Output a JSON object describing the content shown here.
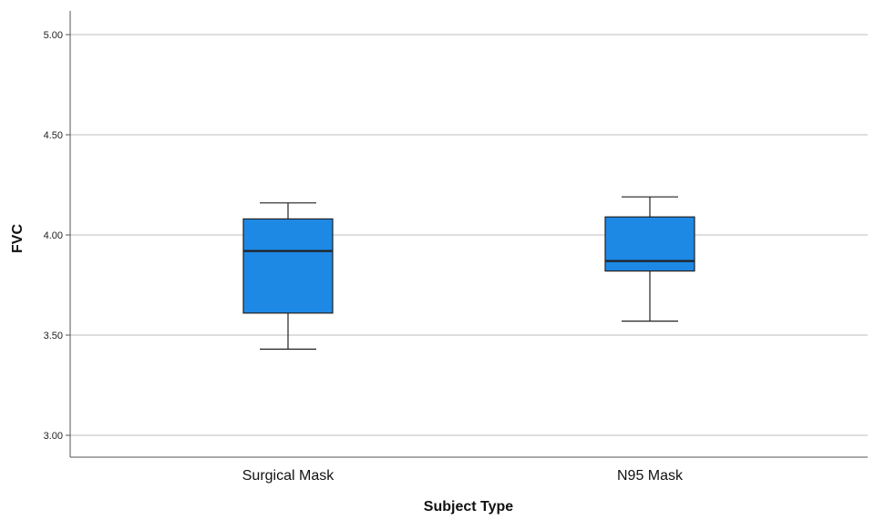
{
  "chart_data": {
    "type": "box",
    "title": "",
    "xlabel": "Subject Type",
    "ylabel": "FVC",
    "ylim": [
      2.95,
      5.1
    ],
    "yticks": [
      3.0,
      3.5,
      4.0,
      4.5,
      5.0
    ],
    "ytick_labels": [
      "3.00",
      "3.50",
      "4.00",
      "4.50",
      "5.00"
    ],
    "grid": true,
    "categories": [
      "Surgical Mask",
      "N95 Mask"
    ],
    "boxes": [
      {
        "category": "Surgical Mask",
        "whisker_low": 3.43,
        "q1": 3.61,
        "median": 3.92,
        "q3": 4.08,
        "whisker_high": 4.16
      },
      {
        "category": "N95 Mask",
        "whisker_low": 3.57,
        "q1": 3.82,
        "median": 3.87,
        "q3": 4.09,
        "whisker_high": 4.19
      }
    ],
    "colors": {
      "box_fill": "#1e88e5",
      "box_stroke": "#222222",
      "gridline": "#bdbdbd",
      "axis": "#555555"
    }
  }
}
